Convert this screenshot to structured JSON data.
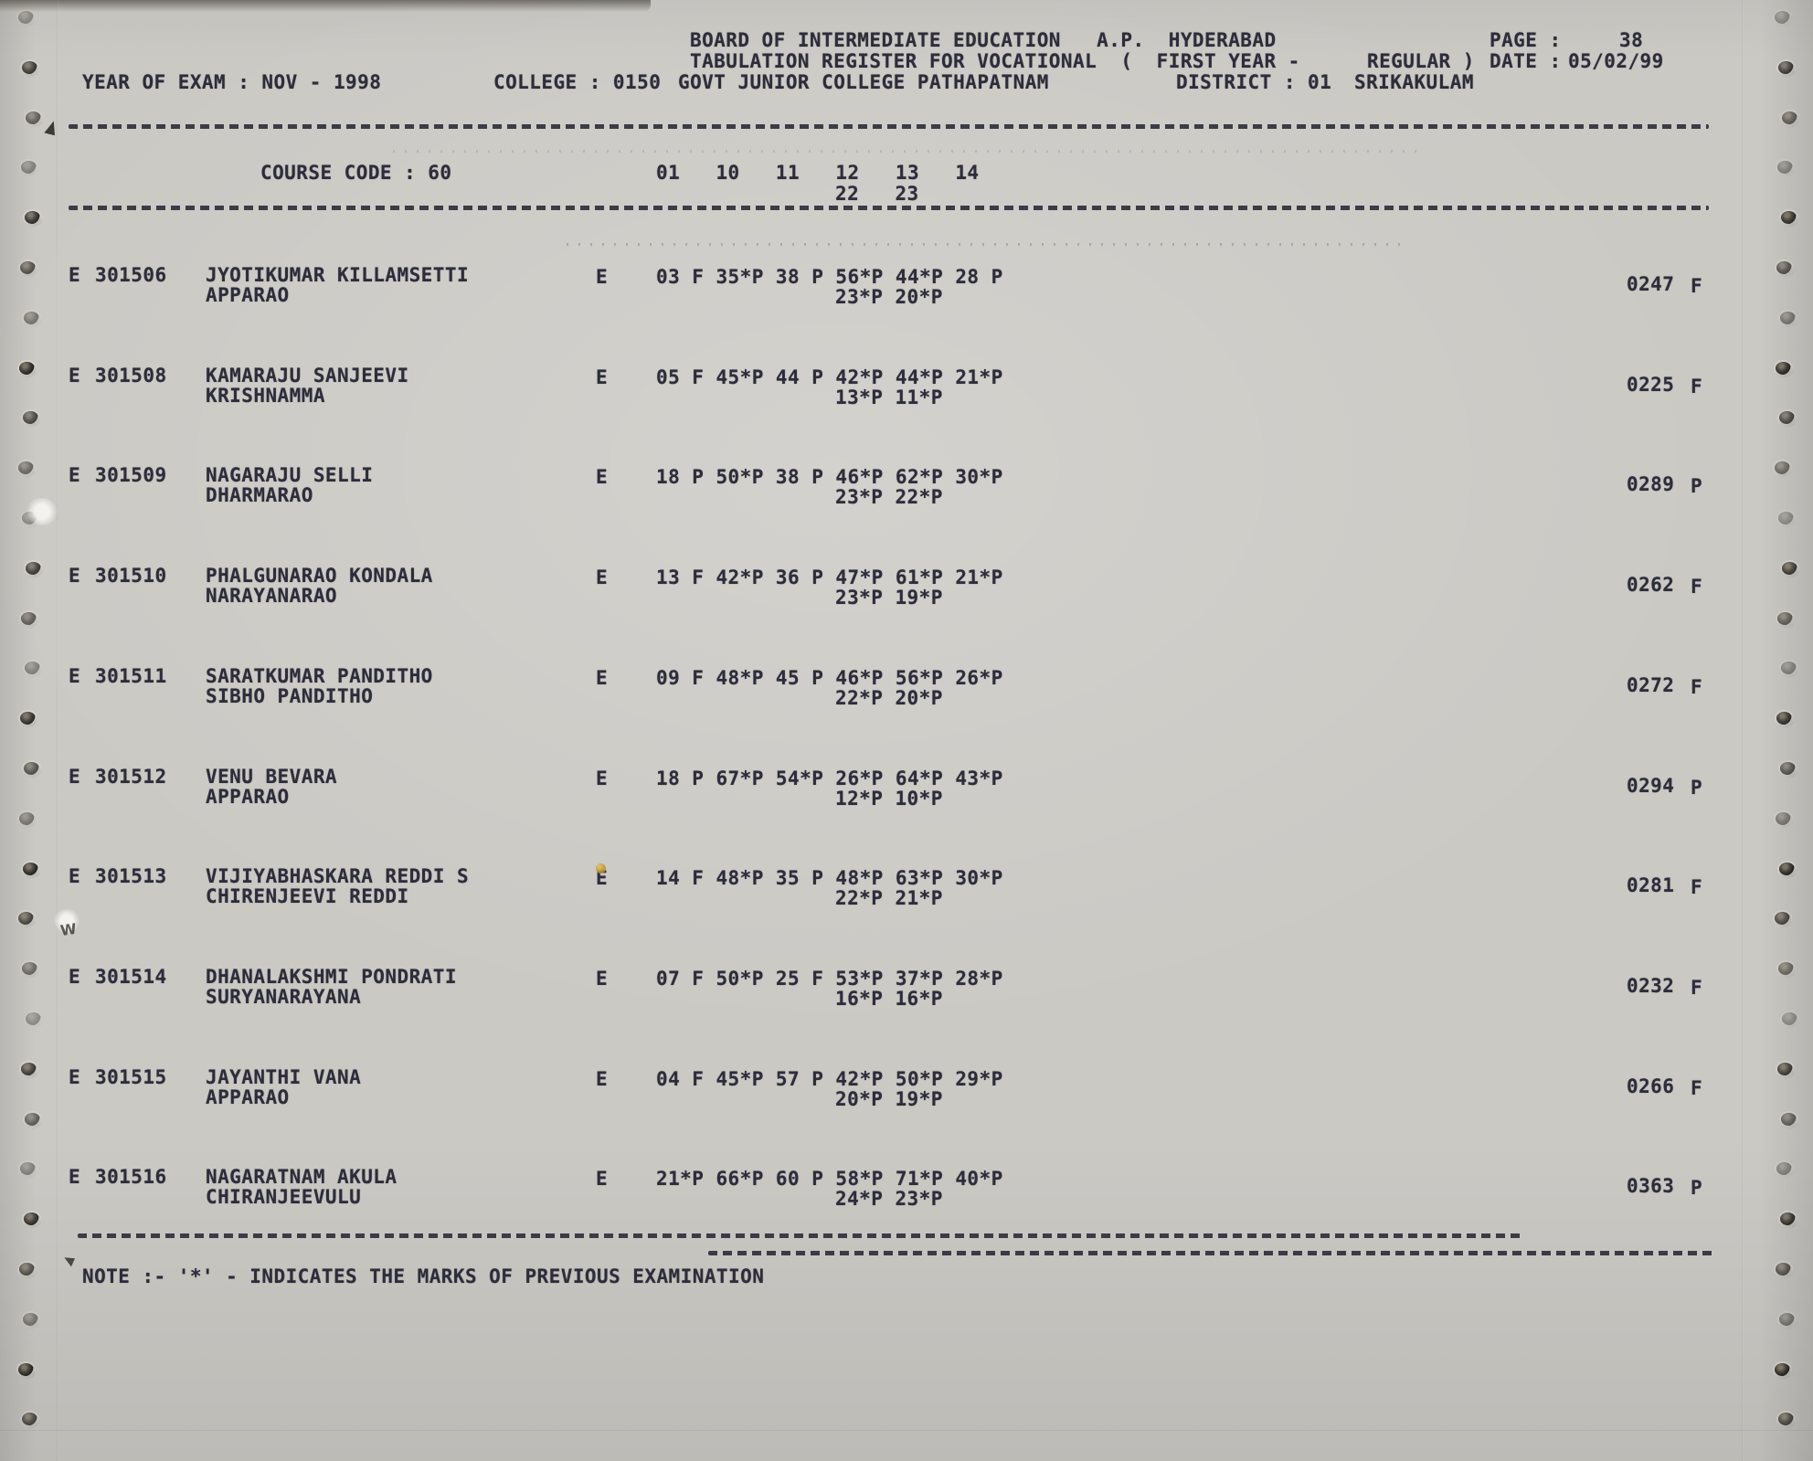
{
  "colors": {
    "paper": "#cbc9c4",
    "ink": "#2d2d3a"
  },
  "header": {
    "org": "BOARD OF INTERMEDIATE EDUCATION   A.P.  HYDERABAD",
    "page_label": "PAGE :",
    "page_value": "38",
    "register_title": "TABULATION REGISTER FOR VOCATIONAL  (  FIRST YEAR -",
    "register_title2": "REGULAR )",
    "date_label": "DATE :",
    "date_value": "05/02/99",
    "year_of_exam": "YEAR OF EXAM : NOV - 1998",
    "college_label": "COLLEGE : 0150",
    "college_name": "GOVT JUNIOR COLLEGE PATHAPATNAM",
    "district_label": "DISTRICT : 01",
    "district_name": "SRIKAKULAM"
  },
  "course": {
    "label": "COURSE CODE : 60",
    "subjects_row1": "01   10   11   12   13   14",
    "subjects_row2": "22   23"
  },
  "students": [
    {
      "grade": "E",
      "reg": "301506",
      "name1": "JYOTIKUMAR KILLAMSETTI",
      "name2": "APPARAO",
      "medium": "E",
      "marks1": "03 F 35*P 38 P 56*P 44*P 28 P",
      "marks2": "23*P 20*P",
      "total": "0247",
      "result": "F"
    },
    {
      "grade": "E",
      "reg": "301508",
      "name1": "KAMARAJU SANJEEVI",
      "name2": "KRISHNAMMA",
      "medium": "E",
      "marks1": "05 F 45*P 44 P 42*P 44*P 21*P",
      "marks2": "13*P 11*P",
      "total": "0225",
      "result": "F"
    },
    {
      "grade": "E",
      "reg": "301509",
      "name1": "NAGARAJU SELLI",
      "name2": "DHARMARAO",
      "medium": "E",
      "marks1": "18 P 50*P 38 P 46*P 62*P 30*P",
      "marks2": "23*P 22*P",
      "total": "0289",
      "result": "P"
    },
    {
      "grade": "E",
      "reg": "301510",
      "name1": "PHALGUNARAO KONDALA",
      "name2": "NARAYANARAO",
      "medium": "E",
      "marks1": "13 F 42*P 36 P 47*P 61*P 21*P",
      "marks2": "23*P 19*P",
      "total": "0262",
      "result": "F"
    },
    {
      "grade": "E",
      "reg": "301511",
      "name1": "SARATKUMAR PANDITHO",
      "name2": "SIBHO PANDITHO",
      "medium": "E",
      "marks1": "09 F 48*P 45 P 46*P 56*P 26*P",
      "marks2": "22*P 20*P",
      "total": "0272",
      "result": "F"
    },
    {
      "grade": "E",
      "reg": "301512",
      "name1": "VENU BEVARA",
      "name2": "APPARAO",
      "medium": "E",
      "marks1": "18 P 67*P 54*P 26*P 64*P 43*P",
      "marks2": "12*P 10*P",
      "total": "0294",
      "result": "P"
    },
    {
      "grade": "E",
      "reg": "301513",
      "name1": "VIJIYABHASKARA REDDI S",
      "name2": "CHIRENJEEVI REDDI",
      "medium": "E",
      "marks1": "14 F 48*P 35 P 48*P 63*P 30*P",
      "marks2": "22*P 21*P",
      "total": "0281",
      "result": "F"
    },
    {
      "grade": "E",
      "reg": "301514",
      "name1": "DHANALAKSHMI PONDRATI",
      "name2": "SURYANARAYANA",
      "medium": "E",
      "marks1": "07 F 50*P 25 F 53*P 37*P 28*P",
      "marks2": "16*P 16*P",
      "total": "0232",
      "result": "F"
    },
    {
      "grade": "E",
      "reg": "301515",
      "name1": "JAYANTHI VANA",
      "name2": "APPARAO",
      "medium": "E",
      "marks1": "04 F 45*P 57 P 42*P 50*P 29*P",
      "marks2": "20*P 19*P",
      "total": "0266",
      "result": "F"
    },
    {
      "grade": "E",
      "reg": "301516",
      "name1": "NAGARATNAM AKULA",
      "name2": "CHIRANJEEVULU",
      "medium": "E",
      "marks1": "21*P 66*P 60 P 58*P 71*P 40*P",
      "marks2": "24*P 23*P",
      "total": "0363",
      "result": "P"
    }
  ],
  "footer": {
    "note": "NOTE :- '*' - INDICATES THE MARKS OF PREVIOUS EXAMINATION"
  }
}
